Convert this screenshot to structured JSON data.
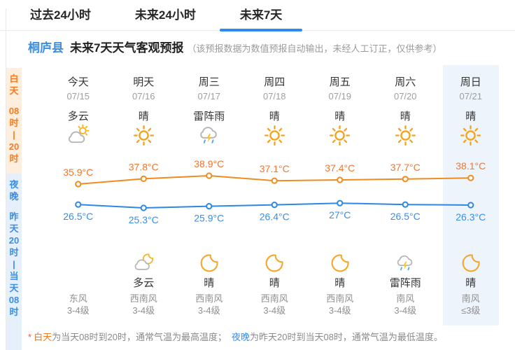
{
  "tabs": [
    {
      "label": "过去24小时",
      "active": false
    },
    {
      "label": "未来24小时",
      "active": false
    },
    {
      "label": "未来7天",
      "active": true
    }
  ],
  "header": {
    "region": "桐庐县",
    "title": "未来7天天气客观预报",
    "note": "（该预报数据为数值预报自动输出，未经人工订正，仅供参考）"
  },
  "sidebar": {
    "day": {
      "label": "白天",
      "time": "08时—20时",
      "lines": [
        "白",
        "天",
        "",
        "08",
        "时",
        "|",
        "20",
        "时"
      ],
      "text_color": "#f57c23",
      "bg": "#fdeedd"
    },
    "night": {
      "label": "夜晚",
      "time": "昨天20时—当天08时",
      "lines": [
        "夜",
        "晚",
        "",
        "昨",
        "天",
        "20",
        "时",
        "|",
        "当",
        "天",
        "08",
        "时"
      ],
      "text_color": "#3a8ee6",
      "bg": "#e5f0fb"
    }
  },
  "columns": [
    {
      "day_name": "今天",
      "date": "07/15",
      "day_condition": "多云",
      "day_icon": "cloud-sun",
      "night_icon": "none",
      "night_condition": "",
      "wind_direction": "东风",
      "wind_level": "3-4级",
      "highlight": false
    },
    {
      "day_name": "明天",
      "date": "07/16",
      "day_condition": "晴",
      "day_icon": "sun",
      "night_icon": "cloud-moon",
      "night_condition": "多云",
      "wind_direction": "西南风",
      "wind_level": "3-4级",
      "highlight": false
    },
    {
      "day_name": "周三",
      "date": "07/17",
      "day_condition": "雷阵雨",
      "day_icon": "thunderstorm",
      "night_icon": "moon",
      "night_condition": "晴",
      "wind_direction": "西南风",
      "wind_level": "3-4级",
      "highlight": false
    },
    {
      "day_name": "周四",
      "date": "07/18",
      "day_condition": "晴",
      "day_icon": "sun",
      "night_icon": "moon",
      "night_condition": "晴",
      "wind_direction": "西南风",
      "wind_level": "3-4级",
      "highlight": false
    },
    {
      "day_name": "周五",
      "date": "07/19",
      "day_condition": "晴",
      "day_icon": "sun",
      "night_icon": "moon",
      "night_condition": "晴",
      "wind_direction": "西南风",
      "wind_level": "3-4级",
      "highlight": false
    },
    {
      "day_name": "周六",
      "date": "07/20",
      "day_condition": "晴",
      "day_icon": "sun",
      "night_icon": "thunderstorm",
      "night_condition": "雷阵雨",
      "wind_direction": "南风",
      "wind_level": "3-4级",
      "highlight": false
    },
    {
      "day_name": "周日",
      "date": "07/21",
      "day_condition": "晴",
      "day_icon": "sun",
      "night_icon": "moon",
      "night_condition": "晴",
      "wind_direction": "南风",
      "wind_level": "≤3级",
      "highlight": true
    }
  ],
  "chart_data": {
    "type": "line",
    "categories": [
      "07/15",
      "07/16",
      "07/17",
      "07/18",
      "07/19",
      "07/20",
      "07/21"
    ],
    "series": [
      {
        "name": "白天最高气温",
        "unit": "°C",
        "color": "#ef8c20",
        "label_color": "#f3752c",
        "values": [
          35.9,
          37.8,
          38.9,
          37.1,
          37.4,
          37.7,
          38.1
        ]
      },
      {
        "name": "夜晚最低气温",
        "unit": "°C",
        "color": "#2e87e3",
        "label_color": "#3a8ee6",
        "values": [
          26.5,
          25.3,
          25.9,
          26.4,
          27,
          26.5,
          26.3
        ]
      }
    ],
    "xlabel": "",
    "ylabel": "",
    "grid": false,
    "legend": "none",
    "ylim": [
      24,
      40
    ]
  },
  "footer": {
    "star": "*",
    "day_term": "白天",
    "day_text": "为当天08时到20时，通常气温为最高温度；",
    "night_term": "夜晚",
    "night_text": "为昨天20时到当天08时，通常气温为最低温度。"
  },
  "colors": {
    "accent_blue": "#2b8ced",
    "accent_orange": "#f57c23",
    "highlight_column_bg": "#eef4fb",
    "high_line": "#ef8c20",
    "low_line": "#2e87e3"
  }
}
